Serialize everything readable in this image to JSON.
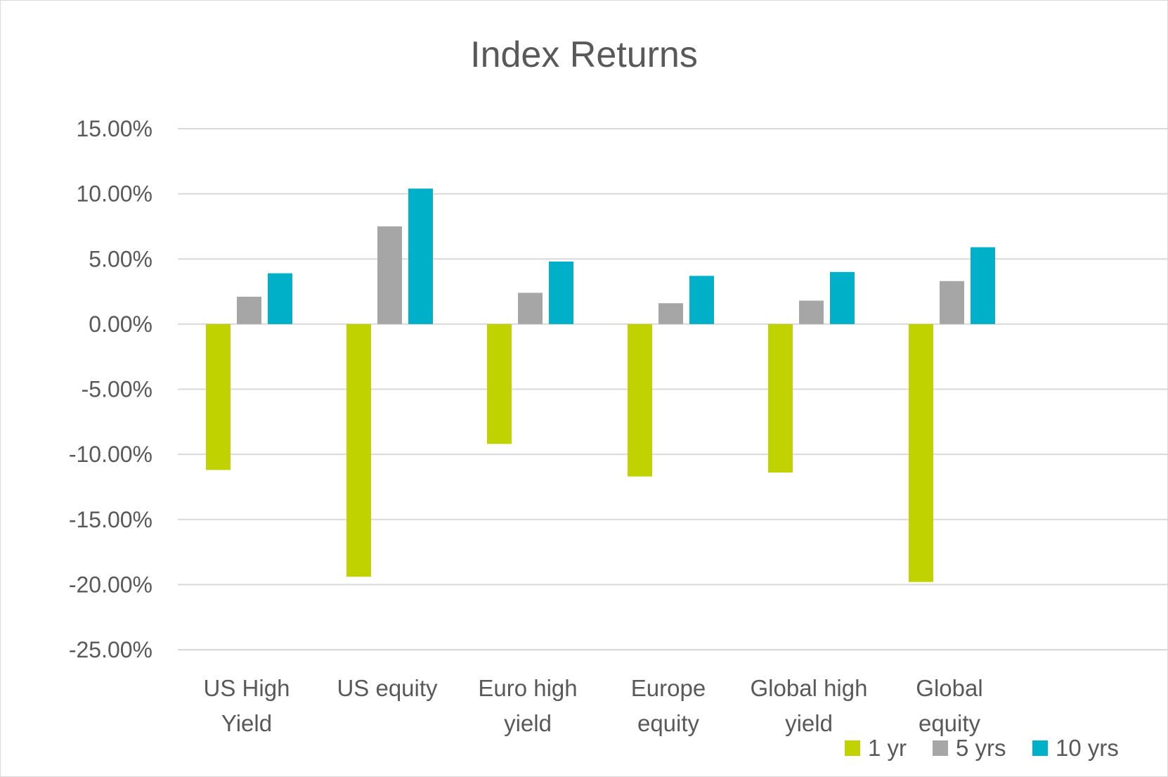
{
  "chart_data": {
    "type": "bar",
    "title": "Index Returns",
    "categories": [
      [
        "US High",
        "Yield"
      ],
      [
        "US equity"
      ],
      [
        "Euro high",
        "yield"
      ],
      [
        "Europe",
        "equity"
      ],
      [
        "Global high",
        "yield"
      ],
      [
        "Global",
        "equity"
      ]
    ],
    "series": [
      {
        "name": "1 yr",
        "color": "#c0d300",
        "values": [
          -11.2,
          -19.4,
          -9.2,
          -11.7,
          -11.4,
          -19.8
        ]
      },
      {
        "name": "5 yrs",
        "color": "#a6a6a6",
        "values": [
          2.1,
          7.5,
          2.4,
          1.6,
          1.8,
          3.3
        ]
      },
      {
        "name": "10 yrs",
        "color": "#00afc8",
        "values": [
          3.9,
          10.4,
          4.8,
          3.7,
          4.0,
          5.9
        ]
      }
    ],
    "ylim": [
      -25,
      15
    ],
    "yticks": [
      15,
      10,
      5,
      0,
      -5,
      -10,
      -15,
      -20,
      -25
    ],
    "ytick_labels": [
      "15.00%",
      "10.00%",
      "5.00%",
      "0.00%",
      "-5.00%",
      "-10.00%",
      "-15.00%",
      "-20.00%",
      "-25.00%"
    ],
    "grid": true,
    "legend": "bottom-right"
  }
}
